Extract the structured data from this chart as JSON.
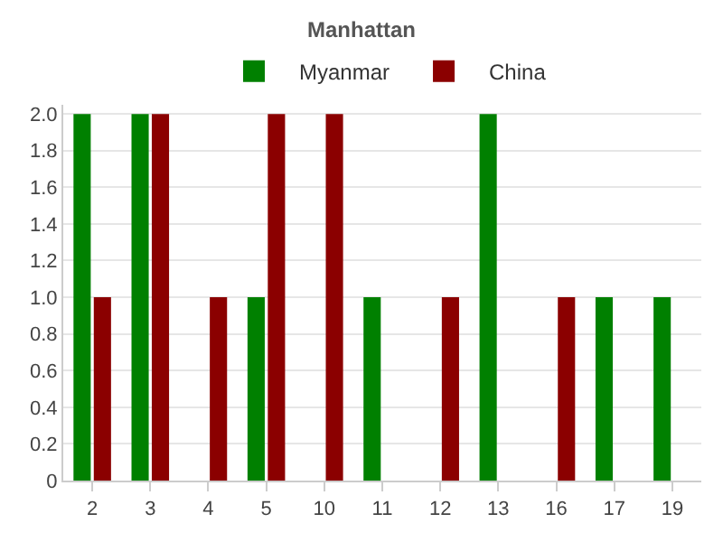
{
  "chart_data": {
    "type": "bar",
    "title": "Manhattan",
    "categories": [
      "2",
      "3",
      "4",
      "5",
      "10",
      "11",
      "12",
      "13",
      "16",
      "17",
      "19"
    ],
    "series": [
      {
        "name": "Myanmar",
        "color": "#008000",
        "values": [
          2,
          2,
          0,
          1,
          0,
          1,
          0,
          2,
          0,
          1,
          1
        ]
      },
      {
        "name": "China",
        "color": "#8b0000",
        "values": [
          1,
          2,
          1,
          2,
          2,
          0,
          1,
          0,
          1,
          0,
          0
        ]
      }
    ],
    "ylim": [
      0,
      2.05
    ],
    "yticks": [
      0,
      0.2,
      0.4,
      0.6,
      0.8,
      {
        "value": 1,
        "label": "1.0"
      },
      1.2,
      1.4,
      1.6,
      1.8,
      {
        "value": 2,
        "label": "2.0"
      }
    ],
    "grid": "y",
    "legend": "top"
  }
}
